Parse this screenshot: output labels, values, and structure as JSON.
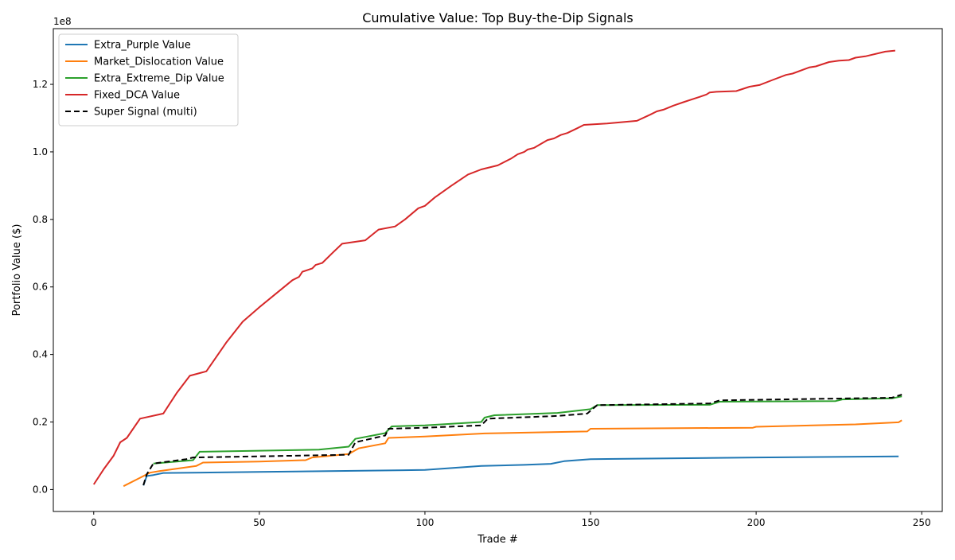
{
  "chart_data": {
    "type": "line",
    "title": "Cumulative Value: Top Buy-the-Dip Signals",
    "xlabel": "Trade #",
    "ylabel": "Portfolio Value ($)",
    "y_offset_label": "1e8",
    "xlim": [
      -12.2,
      256.2
    ],
    "ylim": [
      -0.065,
      1.365
    ],
    "y_units": "1e8 dollars",
    "xticks": [
      0,
      50,
      100,
      150,
      200,
      250
    ],
    "xtick_labels": [
      "0",
      "50",
      "100",
      "150",
      "200",
      "250"
    ],
    "yticks": [
      0,
      0.2,
      0.4,
      0.6,
      0.8,
      1.0,
      1.2
    ],
    "ytick_labels": [
      "0.0",
      "0.2",
      "0.4",
      "0.6",
      "0.8",
      "1.0",
      "1.2"
    ],
    "grid": false,
    "legend_position": "top-left",
    "series": [
      {
        "name": "Extra_Purple Value",
        "color": "#1f77b4",
        "dash": "solid",
        "points": [
          [
            15,
            0.012
          ],
          [
            16,
            0.04
          ],
          [
            18,
            0.043
          ],
          [
            21,
            0.049
          ],
          [
            50,
            0.052
          ],
          [
            100,
            0.058
          ],
          [
            117,
            0.07
          ],
          [
            130,
            0.073
          ],
          [
            138,
            0.076
          ],
          [
            142,
            0.084
          ],
          [
            150,
            0.09
          ],
          [
            200,
            0.095
          ],
          [
            243,
            0.098
          ]
        ]
      },
      {
        "name": "Market_Dislocation Value",
        "color": "#ff7f0e",
        "dash": "solid",
        "points": [
          [
            9,
            0.01
          ],
          [
            14,
            0.035
          ],
          [
            17,
            0.05
          ],
          [
            20,
            0.055
          ],
          [
            31,
            0.07
          ],
          [
            33,
            0.08
          ],
          [
            50,
            0.083
          ],
          [
            64,
            0.087
          ],
          [
            66,
            0.095
          ],
          [
            77,
            0.105
          ],
          [
            80,
            0.122
          ],
          [
            88,
            0.137
          ],
          [
            89,
            0.153
          ],
          [
            100,
            0.157
          ],
          [
            118,
            0.166
          ],
          [
            149,
            0.172
          ],
          [
            150,
            0.18
          ],
          [
            199,
            0.183
          ],
          [
            200,
            0.186
          ],
          [
            230,
            0.193
          ],
          [
            243,
            0.199
          ],
          [
            244,
            0.205
          ]
        ]
      },
      {
        "name": "Extra_Extreme_Dip Value",
        "color": "#2ca02c",
        "dash": "solid",
        "points": [
          [
            18,
            0.077
          ],
          [
            30,
            0.087
          ],
          [
            32,
            0.112
          ],
          [
            50,
            0.115
          ],
          [
            68,
            0.118
          ],
          [
            77,
            0.127
          ],
          [
            79,
            0.15
          ],
          [
            88,
            0.167
          ],
          [
            90,
            0.187
          ],
          [
            100,
            0.19
          ],
          [
            117,
            0.2
          ],
          [
            118,
            0.213
          ],
          [
            121,
            0.22
          ],
          [
            140,
            0.227
          ],
          [
            150,
            0.238
          ],
          [
            152,
            0.25
          ],
          [
            186,
            0.251
          ],
          [
            189,
            0.26
          ],
          [
            224,
            0.262
          ],
          [
            226,
            0.267
          ],
          [
            241,
            0.27
          ],
          [
            244,
            0.276
          ]
        ]
      },
      {
        "name": "Fixed_DCA Value",
        "color": "#d62728",
        "dash": "solid",
        "points": [
          [
            0,
            0.015
          ],
          [
            3,
            0.06
          ],
          [
            6,
            0.1
          ],
          [
            8,
            0.14
          ],
          [
            10,
            0.153
          ],
          [
            14,
            0.21
          ],
          [
            21,
            0.225
          ],
          [
            25,
            0.285
          ],
          [
            29,
            0.337
          ],
          [
            34,
            0.35
          ],
          [
            40,
            0.435
          ],
          [
            45,
            0.497
          ],
          [
            50,
            0.54
          ],
          [
            55,
            0.58
          ],
          [
            60,
            0.62
          ],
          [
            62,
            0.63
          ],
          [
            63,
            0.645
          ],
          [
            66,
            0.655
          ],
          [
            67,
            0.665
          ],
          [
            69,
            0.671
          ],
          [
            72,
            0.7
          ],
          [
            75,
            0.728
          ],
          [
            82,
            0.738
          ],
          [
            86,
            0.77
          ],
          [
            91,
            0.779
          ],
          [
            94,
            0.8
          ],
          [
            98,
            0.833
          ],
          [
            100,
            0.84
          ],
          [
            103,
            0.865
          ],
          [
            108,
            0.9
          ],
          [
            113,
            0.933
          ],
          [
            117,
            0.948
          ],
          [
            122,
            0.96
          ],
          [
            126,
            0.98
          ],
          [
            128,
            0.993
          ],
          [
            130,
            1.0
          ],
          [
            131,
            1.007
          ],
          [
            133,
            1.012
          ],
          [
            137,
            1.035
          ],
          [
            139,
            1.04
          ],
          [
            141,
            1.05
          ],
          [
            143,
            1.056
          ],
          [
            146,
            1.07
          ],
          [
            148,
            1.08
          ],
          [
            155,
            1.084
          ],
          [
            164,
            1.092
          ],
          [
            168,
            1.11
          ],
          [
            170,
            1.12
          ],
          [
            172,
            1.125
          ],
          [
            175,
            1.137
          ],
          [
            178,
            1.147
          ],
          [
            183,
            1.163
          ],
          [
            185,
            1.17
          ],
          [
            186,
            1.176
          ],
          [
            188,
            1.178
          ],
          [
            194,
            1.18
          ],
          [
            198,
            1.193
          ],
          [
            201,
            1.198
          ],
          [
            205,
            1.213
          ],
          [
            209,
            1.228
          ],
          [
            211,
            1.232
          ],
          [
            216,
            1.25
          ],
          [
            218,
            1.253
          ],
          [
            222,
            1.266
          ],
          [
            225,
            1.27
          ],
          [
            228,
            1.272
          ],
          [
            230,
            1.279
          ],
          [
            233,
            1.283
          ],
          [
            239,
            1.297
          ],
          [
            242,
            1.3
          ]
        ]
      },
      {
        "name": "Super Signal (multi)",
        "color": "#000000",
        "dash": "dashed",
        "points": [
          [
            15,
            0.013
          ],
          [
            16,
            0.045
          ],
          [
            18,
            0.077
          ],
          [
            28,
            0.09
          ],
          [
            30,
            0.095
          ],
          [
            77,
            0.103
          ],
          [
            79,
            0.14
          ],
          [
            88,
            0.16
          ],
          [
            89,
            0.18
          ],
          [
            100,
            0.183
          ],
          [
            117,
            0.19
          ],
          [
            119,
            0.21
          ],
          [
            140,
            0.218
          ],
          [
            149,
            0.225
          ],
          [
            152,
            0.25
          ],
          [
            186,
            0.255
          ],
          [
            189,
            0.264
          ],
          [
            241,
            0.272
          ],
          [
            244,
            0.281
          ]
        ]
      }
    ]
  }
}
